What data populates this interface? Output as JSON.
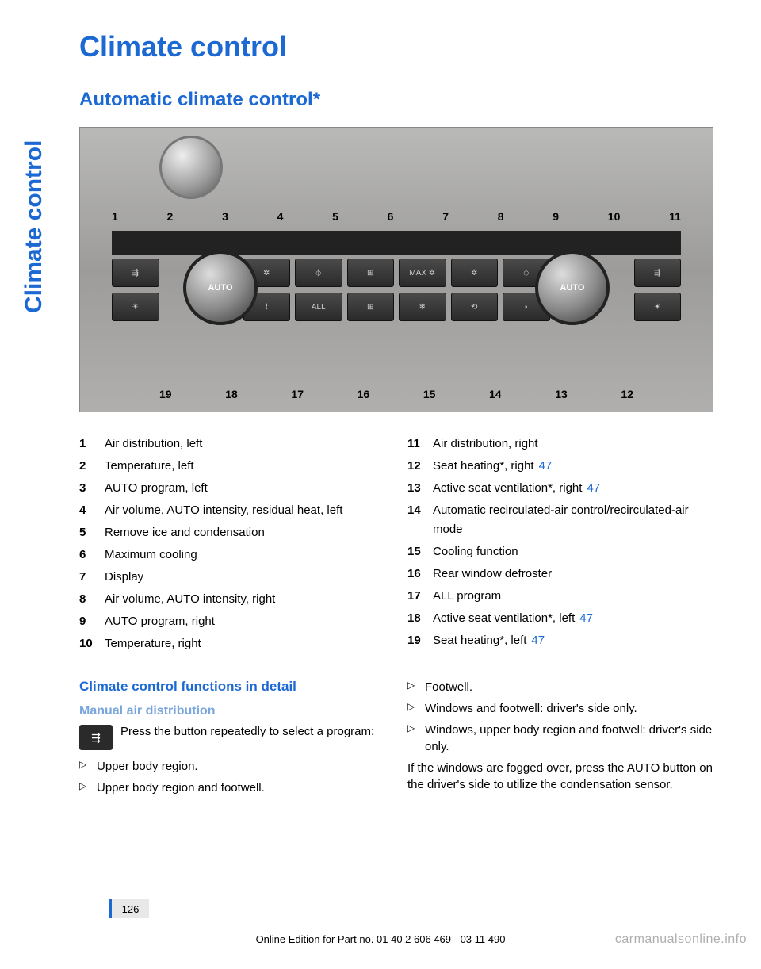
{
  "side_tab": "Climate control",
  "title": "Climate control",
  "subtitle": "Automatic climate control*",
  "diagram": {
    "top_callouts": [
      "1",
      "2",
      "3",
      "4",
      "5",
      "6",
      "7",
      "8",
      "9",
      "10",
      "11"
    ],
    "bottom_callouts": [
      "19",
      "18",
      "17",
      "16",
      "15",
      "14",
      "13",
      "12"
    ],
    "dial_label": "AUTO",
    "buttons_top": [
      "⇶",
      "",
      "✲",
      "⦽",
      "⊞",
      "MAX ✲",
      "✲",
      "⦽",
      "",
      "⇶"
    ],
    "buttons_bot": [
      "☀",
      "",
      "⌇",
      "ALL",
      "⊞",
      "❄",
      "⟲",
      "◗",
      "",
      "☀"
    ]
  },
  "legend_left": [
    {
      "n": "1",
      "t": "Air distribution, left"
    },
    {
      "n": "2",
      "t": "Temperature, left"
    },
    {
      "n": "3",
      "t": "AUTO program, left"
    },
    {
      "n": "4",
      "t": "Air volume, AUTO intensity, residual heat, left"
    },
    {
      "n": "5",
      "t": "Remove ice and condensation"
    },
    {
      "n": "6",
      "t": "Maximum cooling"
    },
    {
      "n": "7",
      "t": "Display"
    },
    {
      "n": "8",
      "t": "Air volume, AUTO intensity, right"
    },
    {
      "n": "9",
      "t": "AUTO program, right"
    },
    {
      "n": "10",
      "t": "Temperature, right"
    }
  ],
  "legend_right": [
    {
      "n": "11",
      "t": "Air distribution, right"
    },
    {
      "n": "12",
      "t": "Seat heating*, right",
      "ref": "47"
    },
    {
      "n": "13",
      "t": "Active seat ventilation*, right",
      "ref": "47"
    },
    {
      "n": "14",
      "t": "Automatic recirculated-air control/recirculated-air mode"
    },
    {
      "n": "15",
      "t": "Cooling function"
    },
    {
      "n": "16",
      "t": "Rear window defroster"
    },
    {
      "n": "17",
      "t": "ALL program"
    },
    {
      "n": "18",
      "t": "Active seat ventilation*, left",
      "ref": "47"
    },
    {
      "n": "19",
      "t": "Seat heating*, left",
      "ref": "47"
    }
  ],
  "detail_heading": "Climate control functions in detail",
  "manual_heading": "Manual air distribution",
  "manual_text": "Press the button repeatedly to select a program:",
  "left_bullets": [
    "Upper body region.",
    "Upper body region and footwell."
  ],
  "right_bullets": [
    "Footwell.",
    "Windows and footwell: driver's side only.",
    "Windows, upper body region and footwell: driver's side only."
  ],
  "right_para": "If the windows are fogged over, press the AUTO button on the driver's side to utilize the condensation sensor.",
  "page_num": "126",
  "footer": "Online Edition for Part no. 01 40 2 606 469 - 03 11 490",
  "watermark": "carmanualsonline.info"
}
